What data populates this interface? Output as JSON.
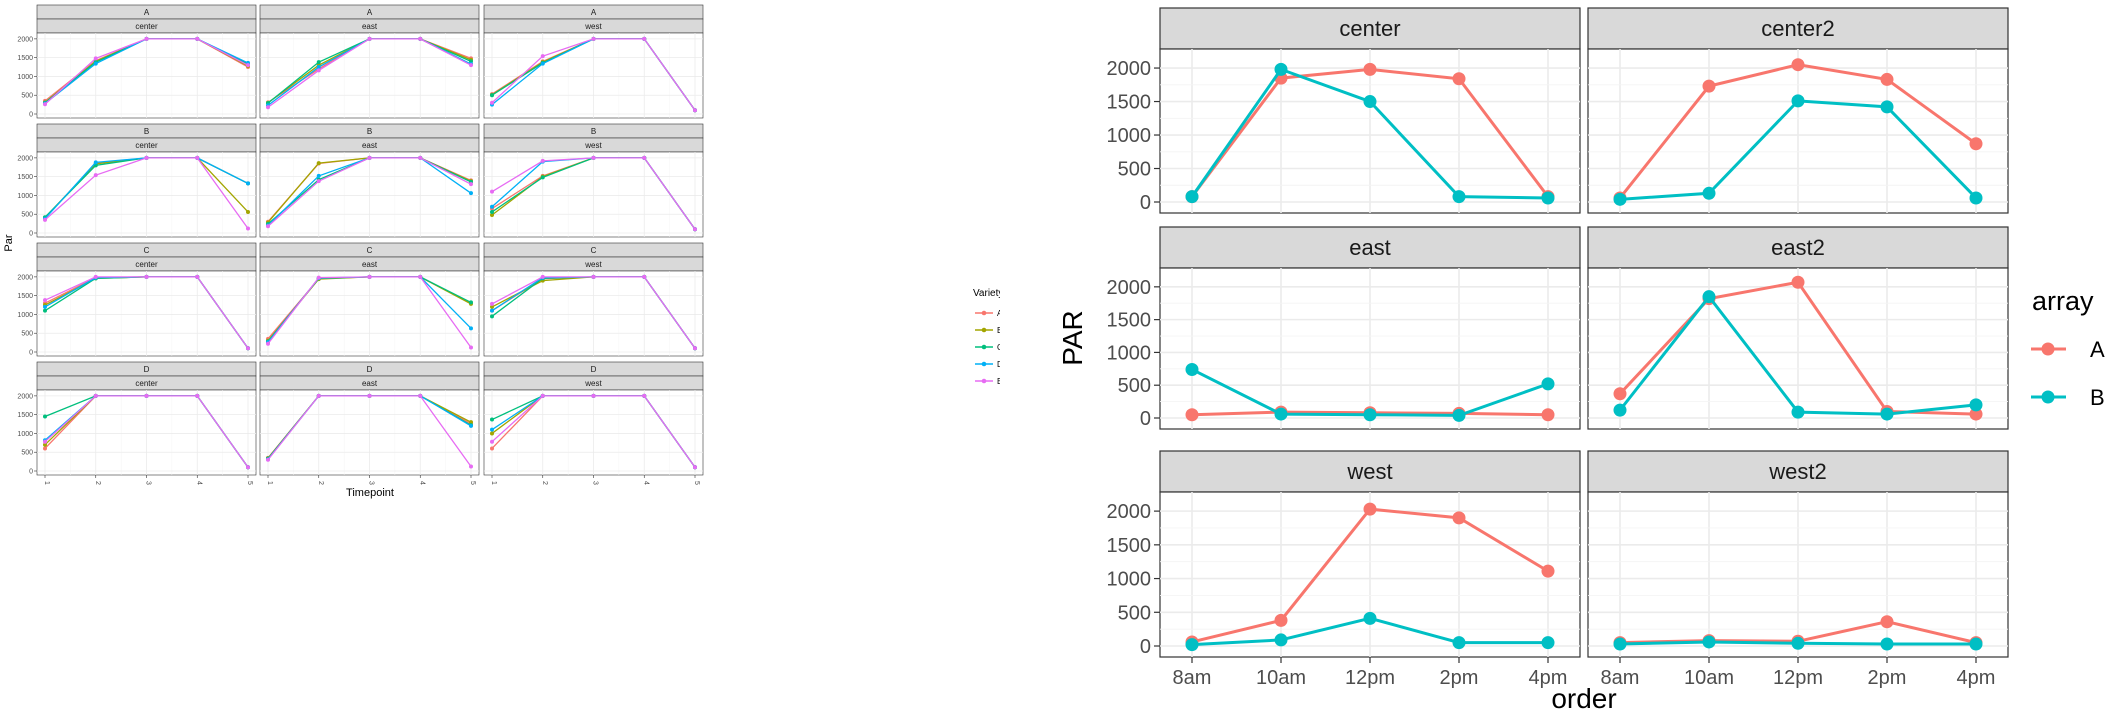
{
  "left_chart": {
    "xlabel": "Timepoint",
    "ylabel": "Par",
    "legend_title": "Variety",
    "legend_items": [
      {
        "label": "A",
        "color": "#F8766D"
      },
      {
        "label": "B",
        "color": "#A3A500"
      },
      {
        "label": "C",
        "color": "#00BF7D"
      },
      {
        "label": "D",
        "color": "#00B0F6"
      },
      {
        "label": "E",
        "color": "#E76BF3"
      }
    ],
    "row_strips": [
      "A",
      "B",
      "C",
      "D"
    ],
    "col_strips": [
      "center",
      "east",
      "west"
    ],
    "x_ticks": [
      "1",
      "2",
      "3",
      "4",
      "5"
    ],
    "y_ticks": [
      "0",
      "500",
      "1000",
      "1500",
      "2000"
    ]
  },
  "right_chart": {
    "xlabel": "order",
    "ylabel": "PAR",
    "legend_title": "array",
    "legend_items": [
      {
        "label": "A",
        "color": "#F8766D"
      },
      {
        "label": "B",
        "color": "#00BFC4"
      }
    ],
    "strips": [
      "center",
      "center2",
      "east",
      "east2",
      "west",
      "west2"
    ],
    "x_ticks": [
      "8am",
      "10am",
      "12pm",
      "2pm",
      "4pm"
    ],
    "y_ticks": [
      "0",
      "500",
      "1000",
      "1500",
      "2000"
    ]
  },
  "chart_data": [
    {
      "type": "line",
      "title": "",
      "xlabel": "Timepoint",
      "ylabel": "Par",
      "x": [
        1,
        2,
        3,
        4,
        5
      ],
      "ylim": [
        0,
        2050
      ],
      "legend_title": "Variety",
      "legend_placement": "right",
      "grid": true,
      "facet_rows": [
        "A",
        "B",
        "C",
        "D"
      ],
      "facet_cols": [
        "center",
        "east",
        "west"
      ],
      "colors": {
        "A": "#F8766D",
        "B": "#A3A500",
        "C": "#00BF7D",
        "D": "#00B0F6",
        "E": "#E76BF3"
      },
      "panels": [
        {
          "row": "A",
          "col": "center",
          "series": [
            {
              "name": "A",
              "values": [
                350,
                1420,
                2000,
                2000,
                1250
              ]
            },
            {
              "name": "B",
              "values": [
                310,
                1400,
                2000,
                2000,
                1280
              ]
            },
            {
              "name": "C",
              "values": [
                300,
                1380,
                2000,
                2000,
                1330
              ]
            },
            {
              "name": "D",
              "values": [
                280,
                1340,
                2000,
                2000,
                1360
              ]
            },
            {
              "name": "E",
              "values": [
                260,
                1480,
                2000,
                2000,
                1300
              ]
            }
          ]
        },
        {
          "row": "A",
          "col": "east",
          "series": [
            {
              "name": "A",
              "values": [
                310,
                1200,
                2000,
                2000,
                1480
              ]
            },
            {
              "name": "B",
              "values": [
                300,
                1300,
                2000,
                2000,
                1440
              ]
            },
            {
              "name": "C",
              "values": [
                290,
                1380,
                2000,
                2000,
                1400
              ]
            },
            {
              "name": "D",
              "values": [
                230,
                1250,
                2000,
                2000,
                1330
              ]
            },
            {
              "name": "E",
              "values": [
                180,
                1160,
                2000,
                2000,
                1300
              ]
            }
          ]
        },
        {
          "row": "A",
          "col": "west",
          "series": [
            {
              "name": "A",
              "values": [
                530,
                1400,
                2000,
                2000,
                100
              ]
            },
            {
              "name": "B",
              "values": [
                510,
                1380,
                2000,
                2000,
                100
              ]
            },
            {
              "name": "C",
              "values": [
                500,
                1360,
                2000,
                2000,
                100
              ]
            },
            {
              "name": "D",
              "values": [
                250,
                1340,
                2000,
                2000,
                100
              ]
            },
            {
              "name": "E",
              "values": [
                300,
                1540,
                2000,
                2000,
                100
              ]
            }
          ]
        },
        {
          "row": "B",
          "col": "center",
          "series": [
            {
              "name": "A",
              "values": [
                400,
                1850,
                2000,
                2000,
                1320
              ]
            },
            {
              "name": "B",
              "values": [
                410,
                1840,
                2000,
                2000,
                560
              ]
            },
            {
              "name": "C",
              "values": [
                420,
                1800,
                2000,
                2000,
                1320
              ]
            },
            {
              "name": "D",
              "values": [
                380,
                1880,
                2000,
                2000,
                1320
              ]
            },
            {
              "name": "E",
              "values": [
                350,
                1540,
                2000,
                2000,
                120
              ]
            }
          ]
        },
        {
          "row": "B",
          "col": "east",
          "series": [
            {
              "name": "A",
              "values": [
                300,
                1850,
                2000,
                2000,
                1400
              ]
            },
            {
              "name": "B",
              "values": [
                280,
                1860,
                2000,
                2000,
                1380
              ]
            },
            {
              "name": "C",
              "values": [
                240,
                1420,
                2000,
                2000,
                1360
              ]
            },
            {
              "name": "D",
              "values": [
                200,
                1520,
                2000,
                2000,
                1060
              ]
            },
            {
              "name": "E",
              "values": [
                180,
                1380,
                2000,
                2000,
                1300
              ]
            }
          ]
        },
        {
          "row": "B",
          "col": "west",
          "series": [
            {
              "name": "A",
              "values": [
                650,
                1520,
                2000,
                2000,
                100
              ]
            },
            {
              "name": "B",
              "values": [
                480,
                1500,
                2000,
                2000,
                100
              ]
            },
            {
              "name": "C",
              "values": [
                560,
                1480,
                2000,
                2000,
                100
              ]
            },
            {
              "name": "D",
              "values": [
                700,
                1900,
                2000,
                2000,
                100
              ]
            },
            {
              "name": "E",
              "values": [
                1100,
                1920,
                2000,
                2000,
                100
              ]
            }
          ]
        },
        {
          "row": "C",
          "col": "center",
          "series": [
            {
              "name": "A",
              "values": [
                1300,
                1980,
                2000,
                2000,
                100
              ]
            },
            {
              "name": "B",
              "values": [
                1250,
                1960,
                2000,
                2000,
                100
              ]
            },
            {
              "name": "C",
              "values": [
                1100,
                1960,
                2000,
                2000,
                100
              ]
            },
            {
              "name": "D",
              "values": [
                1200,
                1980,
                2000,
                2000,
                100
              ]
            },
            {
              "name": "E",
              "values": [
                1380,
                2000,
                2000,
                2000,
                100
              ]
            }
          ]
        },
        {
          "row": "C",
          "col": "east",
          "series": [
            {
              "name": "A",
              "values": [
                350,
                1950,
                2000,
                2000,
                1300
              ]
            },
            {
              "name": "B",
              "values": [
                300,
                1940,
                2000,
                2000,
                1280
              ]
            },
            {
              "name": "C",
              "values": [
                280,
                1960,
                2000,
                2000,
                1320
              ]
            },
            {
              "name": "D",
              "values": [
                260,
                1970,
                2000,
                2000,
                630
              ]
            },
            {
              "name": "E",
              "values": [
                220,
                1980,
                2000,
                2000,
                120
              ]
            }
          ]
        },
        {
          "row": "C",
          "col": "west",
          "series": [
            {
              "name": "A",
              "values": [
                1100,
                1950,
                2000,
                2000,
                100
              ]
            },
            {
              "name": "B",
              "values": [
                1200,
                1900,
                2000,
                2000,
                100
              ]
            },
            {
              "name": "C",
              "values": [
                950,
                1960,
                2000,
                2000,
                100
              ]
            },
            {
              "name": "D",
              "values": [
                1100,
                1980,
                2000,
                2000,
                100
              ]
            },
            {
              "name": "E",
              "values": [
                1280,
                2000,
                2000,
                2000,
                100
              ]
            }
          ]
        },
        {
          "row": "D",
          "col": "center",
          "series": [
            {
              "name": "A",
              "values": [
                600,
                2000,
                2000,
                2000,
                100
              ]
            },
            {
              "name": "B",
              "values": [
                700,
                2000,
                2000,
                2000,
                100
              ]
            },
            {
              "name": "C",
              "values": [
                1450,
                2000,
                2000,
                2000,
                100
              ]
            },
            {
              "name": "D",
              "values": [
                820,
                2000,
                2000,
                2000,
                100
              ]
            },
            {
              "name": "E",
              "values": [
                780,
                2000,
                2000,
                2000,
                100
              ]
            }
          ]
        },
        {
          "row": "D",
          "col": "east",
          "series": [
            {
              "name": "A",
              "values": [
                350,
                2000,
                2000,
                2000,
                1260
              ]
            },
            {
              "name": "B",
              "values": [
                340,
                2000,
                2000,
                2000,
                1300
              ]
            },
            {
              "name": "C",
              "values": [
                330,
                2000,
                2000,
                2000,
                1220
              ]
            },
            {
              "name": "D",
              "values": [
                310,
                2000,
                2000,
                2000,
                1200
              ]
            },
            {
              "name": "E",
              "values": [
                300,
                2000,
                2000,
                2000,
                120
              ]
            }
          ]
        },
        {
          "row": "D",
          "col": "west",
          "series": [
            {
              "name": "A",
              "values": [
                600,
                2000,
                2000,
                2000,
                100
              ]
            },
            {
              "name": "B",
              "values": [
                1000,
                2000,
                2000,
                2000,
                100
              ]
            },
            {
              "name": "C",
              "values": [
                1370,
                2000,
                2000,
                2000,
                100
              ]
            },
            {
              "name": "D",
              "values": [
                1100,
                2000,
                2000,
                2000,
                100
              ]
            },
            {
              "name": "E",
              "values": [
                780,
                2000,
                2000,
                2000,
                100
              ]
            }
          ]
        }
      ]
    },
    {
      "type": "line",
      "title": "",
      "xlabel": "order",
      "ylabel": "PAR",
      "x": [
        "8am",
        "10am",
        "12pm",
        "2pm",
        "4pm"
      ],
      "ylim": [
        0,
        2150
      ],
      "legend_title": "array",
      "legend_placement": "right",
      "grid": true,
      "colors": {
        "A": "#F8766D",
        "B": "#00BFC4"
      },
      "panels": [
        {
          "facet": "center",
          "series": [
            {
              "name": "A",
              "values": [
                80,
                1850,
                1980,
                1840,
                80
              ]
            },
            {
              "name": "B",
              "values": [
                80,
                1980,
                1500,
                80,
                60
              ]
            }
          ]
        },
        {
          "facet": "center2",
          "series": [
            {
              "name": "A",
              "values": [
                60,
                1730,
                2050,
                1830,
                870
              ]
            },
            {
              "name": "B",
              "values": [
                40,
                130,
                1510,
                1420,
                60
              ]
            }
          ]
        },
        {
          "facet": "east",
          "series": [
            {
              "name": "A",
              "values": [
                50,
                90,
                80,
                70,
                50
              ]
            },
            {
              "name": "B",
              "values": [
                740,
                60,
                50,
                40,
                520
              ]
            }
          ]
        },
        {
          "facet": "east2",
          "series": [
            {
              "name": "A",
              "values": [
                370,
                1820,
                2070,
                100,
                60
              ]
            },
            {
              "name": "B",
              "values": [
                120,
                1850,
                90,
                60,
                200
              ]
            }
          ]
        },
        {
          "facet": "west",
          "series": [
            {
              "name": "A",
              "values": [
                60,
                380,
                2030,
                1900,
                1110
              ]
            },
            {
              "name": "B",
              "values": [
                20,
                90,
                410,
                50,
                50
              ]
            }
          ]
        },
        {
          "facet": "west2",
          "series": [
            {
              "name": "A",
              "values": [
                50,
                80,
                70,
                360,
                50
              ]
            },
            {
              "name": "B",
              "values": [
                30,
                60,
                40,
                30,
                30
              ]
            }
          ]
        }
      ]
    }
  ]
}
